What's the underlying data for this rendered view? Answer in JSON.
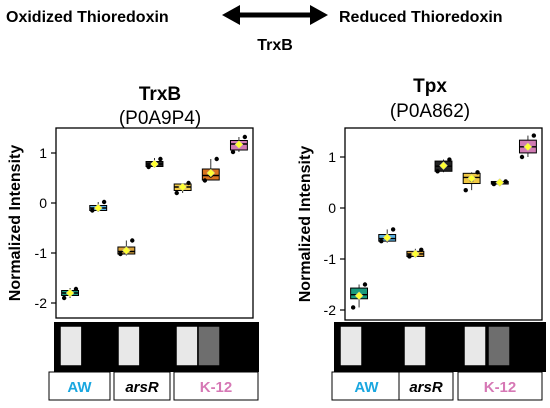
{
  "header": {
    "left_label": "Oxidized Thioredoxin",
    "right_label": "Reduced Thioredoxin",
    "enzyme_label": "TrxB"
  },
  "colors": {
    "AW": "#1aa7e0",
    "arsR": "#000000",
    "K-12": "#d678b5",
    "bar_light": "#e8e8e8",
    "bar_mid": "#6e6e6e",
    "bar_dark": "#000000",
    "mean_marker": "#ffff33"
  },
  "chart_data": [
    {
      "type": "box",
      "title": "TrxB",
      "subtitle": "(P0A9P4)",
      "ylabel": "Normalized Intensity",
      "ylim": [
        -2.15,
        1.45
      ],
      "yticks": [
        "1",
        "0",
        "-1",
        "-2"
      ],
      "groups": [
        "AW",
        "arsR",
        "K-12"
      ],
      "series": [
        {
          "fill": "#1a9a7c",
          "points": [
            -1.9,
            -1.8,
            -1.72
          ],
          "q1": -1.85,
          "median": -1.8,
          "q3": -1.75,
          "min": -1.9,
          "max": -1.7,
          "mean": -1.8
        },
        {
          "fill": "#5ab0e0",
          "points": [
            -0.15,
            -0.1,
            0.02
          ],
          "q1": -0.15,
          "median": -0.1,
          "q3": -0.05,
          "min": -0.18,
          "max": 0.02,
          "mean": -0.1
        },
        {
          "fill": "#d9a23a",
          "points": [
            -1.02,
            -0.98,
            -0.75
          ],
          "q1": -1.02,
          "median": -0.97,
          "q3": -0.88,
          "min": -1.05,
          "max": -0.75,
          "mean": -0.95
        },
        {
          "fill": "#222222",
          "points": [
            0.72,
            0.78,
            0.88
          ],
          "q1": 0.73,
          "median": 0.78,
          "q3": 0.83,
          "min": 0.7,
          "max": 0.9,
          "mean": 0.78
        },
        {
          "fill": "#f0c843",
          "points": [
            0.2,
            0.32,
            0.4
          ],
          "q1": 0.25,
          "median": 0.32,
          "q3": 0.38,
          "min": 0.2,
          "max": 0.4,
          "mean": 0.32
        },
        {
          "fill": "#d9731f",
          "points": [
            0.45,
            0.55,
            0.88
          ],
          "q1": 0.46,
          "median": 0.55,
          "q3": 0.68,
          "min": 0.45,
          "max": 0.88,
          "mean": 0.6
        },
        {
          "fill": "#d07bb3",
          "points": [
            1.02,
            1.18,
            1.32
          ],
          "q1": 1.06,
          "median": 1.18,
          "q3": 1.25,
          "min": 1.02,
          "max": 1.32,
          "mean": 1.17
        }
      ]
    },
    {
      "type": "box",
      "title": "Tpx",
      "subtitle": "(P0A862)",
      "ylabel": "Normalized Intensity",
      "ylim": [
        -2.15,
        1.55
      ],
      "yticks": [
        "1",
        "0",
        "-1",
        "-2"
      ],
      "groups": [
        "AW",
        "arsR",
        "K-12"
      ],
      "series": [
        {
          "fill": "#1a9a7c",
          "points": [
            -1.95,
            -1.75,
            -1.5
          ],
          "q1": -1.78,
          "median": -1.7,
          "q3": -1.57,
          "min": -1.95,
          "max": -1.5,
          "mean": -1.72
        },
        {
          "fill": "#5ab0e0",
          "points": [
            -0.65,
            -0.58,
            -0.42
          ],
          "q1": -0.65,
          "median": -0.6,
          "q3": -0.52,
          "min": -0.68,
          "max": -0.42,
          "mean": -0.58
        },
        {
          "fill": "#d9a23a",
          "points": [
            -0.95,
            -0.88,
            -0.82
          ],
          "q1": -0.95,
          "median": -0.9,
          "q3": -0.85,
          "min": -0.97,
          "max": -0.8,
          "mean": -0.9
        },
        {
          "fill": "#222222",
          "points": [
            0.72,
            0.82,
            0.95
          ],
          "q1": 0.72,
          "median": 0.82,
          "q3": 0.92,
          "min": 0.7,
          "max": 0.95,
          "mean": 0.83
        },
        {
          "fill": "#f0c843",
          "points": [
            0.35,
            0.55,
            0.7
          ],
          "q1": 0.48,
          "median": 0.6,
          "q3": 0.68,
          "min": 0.35,
          "max": 0.7,
          "mean": 0.58
        },
        {
          "fill": "#d07bb3",
          "points": [
            0.47,
            0.5,
            0.52
          ],
          "q1": 0.47,
          "median": 0.5,
          "q3": 0.52,
          "min": 0.46,
          "max": 0.53,
          "mean": 0.5
        },
        {
          "fill": "#d07bb3",
          "points": [
            1.0,
            1.2,
            1.42
          ],
          "q1": 1.08,
          "median": 1.2,
          "q3": 1.33,
          "min": 1.0,
          "max": 1.42,
          "mean": 1.2
        }
      ]
    }
  ],
  "condition_bars": [
    [
      "light",
      "dark",
      "light",
      "dark",
      "light",
      "mid",
      "dark"
    ],
    [
      "light",
      "dark",
      "light",
      "dark",
      "light",
      "mid",
      "dark"
    ]
  ],
  "group_labels": [
    {
      "text": "AW",
      "color_key": "AW",
      "italic": false
    },
    {
      "text": "arsR",
      "color_key": "arsR",
      "italic": true
    },
    {
      "text": "K-12",
      "color_key": "K-12",
      "italic": false
    }
  ]
}
